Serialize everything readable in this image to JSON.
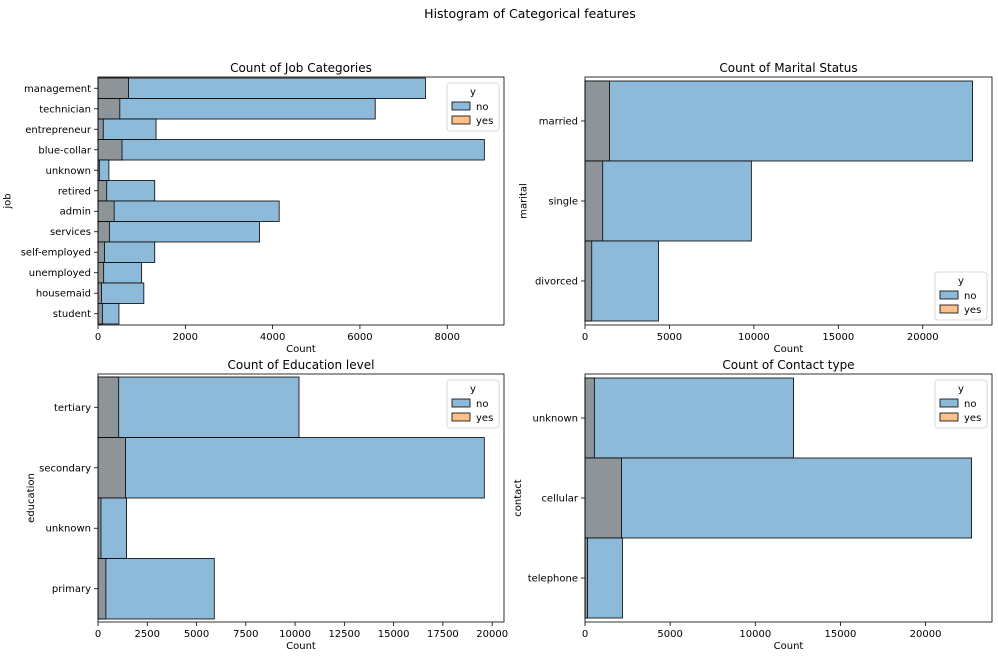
{
  "figure": {
    "suptitle": "Histogram of Categorical features"
  },
  "colors": {
    "no": "#1f77b4",
    "yes": "#ff7f0e",
    "no_fill": "#8ebad9",
    "overlap_fill": "#8e9599",
    "yes_fill": "#ffc08a"
  },
  "chart_data": [
    {
      "type": "bar",
      "orientation": "horizontal",
      "title": "Count of Job Categories",
      "xlabel": "Count",
      "ylabel": "job",
      "categories": [
        "management",
        "technician",
        "entrepreneur",
        "blue-collar",
        "unknown",
        "retired",
        "admin",
        "services",
        "self-employed",
        "unemployed",
        "housemaid",
        "student"
      ],
      "series": [
        {
          "name": "no",
          "values": [
            7500,
            6350,
            1330,
            8850,
            250,
            1300,
            4150,
            3700,
            1300,
            1000,
            1050,
            480
          ]
        },
        {
          "name": "yes",
          "values": [
            700,
            500,
            120,
            550,
            30,
            200,
            370,
            260,
            150,
            130,
            80,
            100
          ]
        }
      ],
      "xlim": [
        0,
        9300
      ],
      "xticks": [
        0,
        2000,
        4000,
        6000,
        8000
      ],
      "legend": {
        "title": "y",
        "entries": [
          "no",
          "yes"
        ],
        "position": "top-right"
      }
    },
    {
      "type": "bar",
      "orientation": "horizontal",
      "title": "Count of Marital Status",
      "xlabel": "Count",
      "ylabel": "marital",
      "categories": [
        "married",
        "single",
        "divorced"
      ],
      "series": [
        {
          "name": "no",
          "values": [
            22950,
            9850,
            4350
          ]
        },
        {
          "name": "yes",
          "values": [
            1450,
            1050,
            400
          ]
        }
      ],
      "xlim": [
        0,
        24100
      ],
      "xticks": [
        0,
        5000,
        10000,
        15000,
        20000
      ],
      "legend": {
        "title": "y",
        "entries": [
          "no",
          "yes"
        ],
        "position": "bottom-right"
      }
    },
    {
      "type": "bar",
      "orientation": "horizontal",
      "title": "Count of Education level",
      "xlabel": "Count",
      "ylabel": "education",
      "categories": [
        "tertiary",
        "secondary",
        "unknown",
        "primary"
      ],
      "series": [
        {
          "name": "no",
          "values": [
            10200,
            19600,
            1450,
            5900
          ]
        },
        {
          "name": "yes",
          "values": [
            1050,
            1400,
            150,
            400
          ]
        }
      ],
      "xlim": [
        0,
        20600
      ],
      "xticks": [
        0,
        2500,
        5000,
        7500,
        10000,
        12500,
        15000,
        17500,
        20000
      ],
      "legend": {
        "title": "y",
        "entries": [
          "no",
          "yes"
        ],
        "position": "top-right"
      }
    },
    {
      "type": "bar",
      "orientation": "horizontal",
      "title": "Count of Contact type",
      "xlabel": "Count",
      "ylabel": "contact",
      "categories": [
        "unknown",
        "cellular",
        "telephone"
      ],
      "series": [
        {
          "name": "no",
          "values": [
            12250,
            22700,
            2200
          ]
        },
        {
          "name": "yes",
          "values": [
            550,
            2150,
            150
          ]
        }
      ],
      "xlim": [
        0,
        23900
      ],
      "xticks": [
        0,
        5000,
        10000,
        15000,
        20000
      ],
      "legend": {
        "title": "y",
        "entries": [
          "no",
          "yes"
        ],
        "position": "top-right"
      }
    }
  ]
}
